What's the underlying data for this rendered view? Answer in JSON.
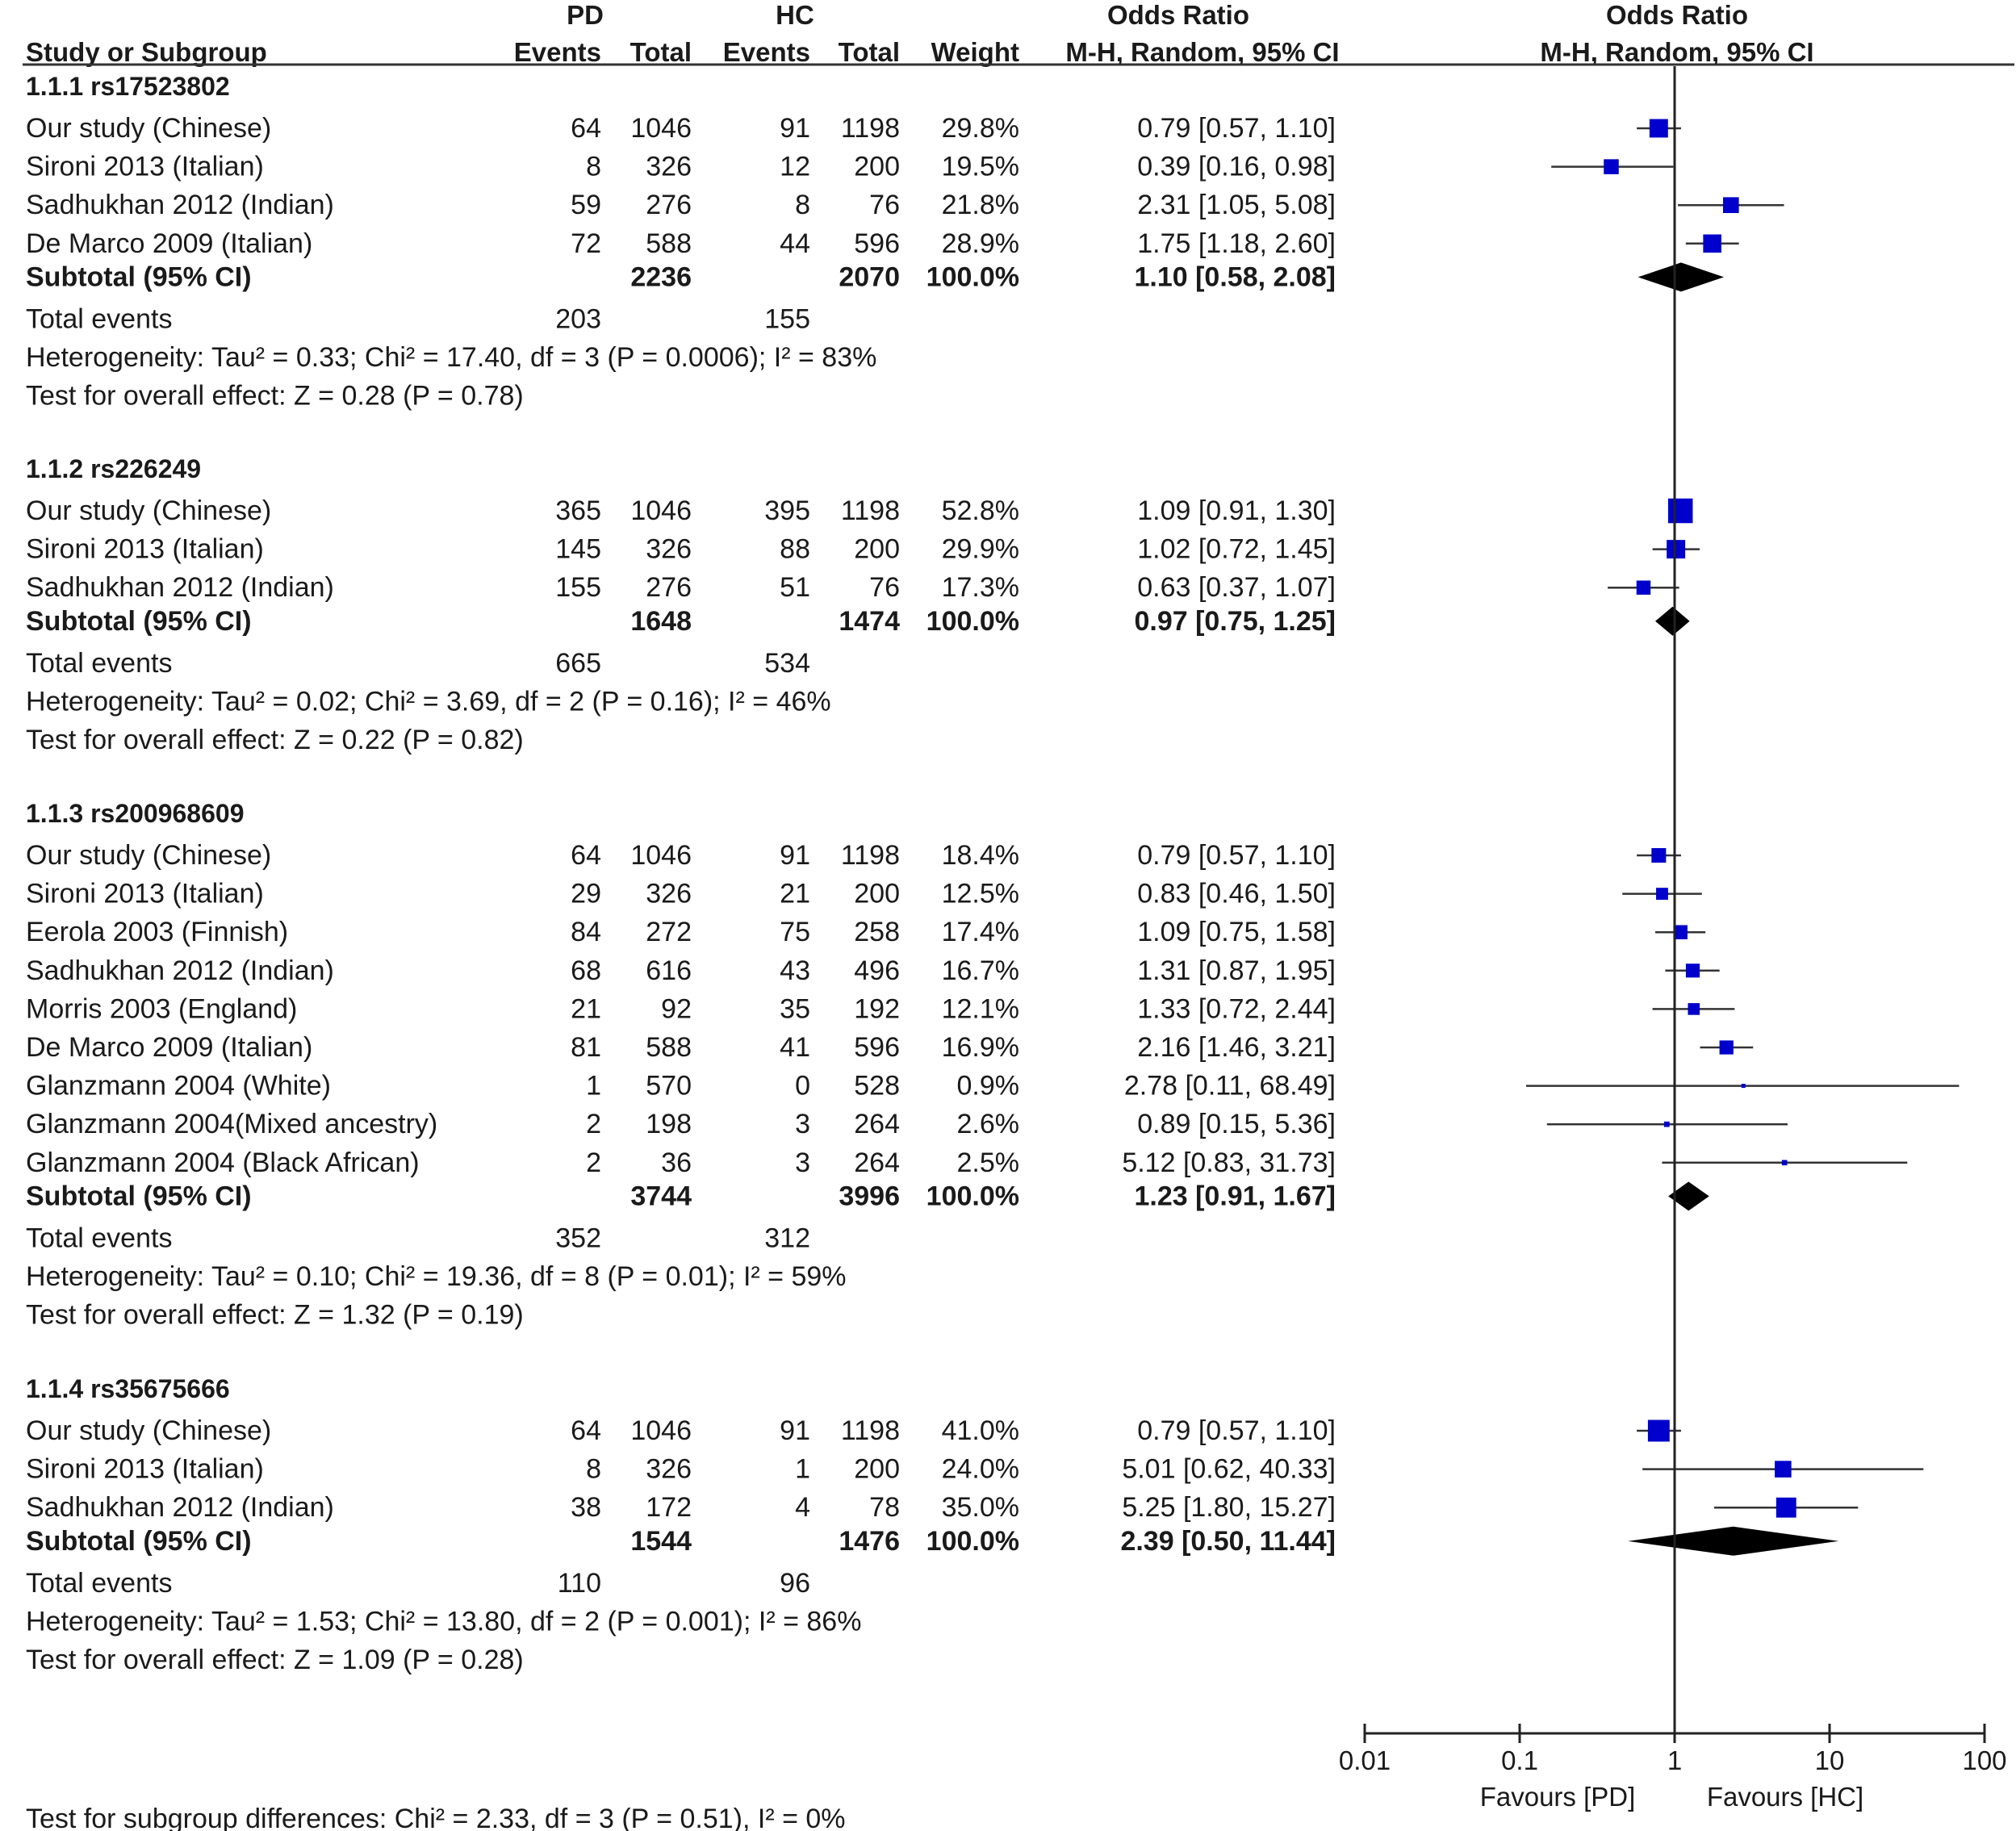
{
  "header": {
    "pd": "PD",
    "hc": "HC",
    "or_left": "Odds Ratio",
    "or_right": "Odds Ratio",
    "study": "Study or Subgroup",
    "events_pd": "Events",
    "total_pd": "Total",
    "events_hc": "Events",
    "total_hc": "Total",
    "weight": "Weight",
    "method_left": "M-H, Random, 95% CI",
    "method_right": "M-H, Random, 95% CI"
  },
  "footer": {
    "favours_left": "Favours [PD]",
    "favours_right": "Favours [HC]",
    "subgroup_test": "Test for subgroup differences: Chi² = 2.33, df = 3 (P = 0.51), I² = 0%"
  },
  "chart_data": {
    "type": "forest",
    "title": "Odds Ratio",
    "xlabel": "M-H, Random, 95% CI",
    "x_scale": "log",
    "xlim": [
      0.01,
      100
    ],
    "ticks": [
      0.01,
      0.1,
      1,
      10,
      100
    ],
    "tick_labels": [
      "0.01",
      "0.1",
      "1",
      "10",
      "100"
    ],
    "colors": {
      "study": "#0000cc",
      "subtotal": "#000000",
      "line": "#333333"
    },
    "groups": [
      {
        "name": "1.1.1 rs17523802",
        "studies": [
          {
            "label": "Our study (Chinese)",
            "pd_events": "64",
            "pd_total": "1046",
            "hc_events": "91",
            "hc_total": "1198",
            "weight": "29.8%",
            "ci_text": "0.79 [0.57, 1.10]",
            "or": 0.79,
            "lo": 0.57,
            "hi": 1.1
          },
          {
            "label": "Sironi 2013 (Italian)",
            "pd_events": "8",
            "pd_total": "326",
            "hc_events": "12",
            "hc_total": "200",
            "weight": "19.5%",
            "ci_text": "0.39 [0.16, 0.98]",
            "or": 0.39,
            "lo": 0.16,
            "hi": 0.98
          },
          {
            "label": "Sadhukhan 2012 (Indian)",
            "pd_events": "59",
            "pd_total": "276",
            "hc_events": "8",
            "hc_total": "76",
            "weight": "21.8%",
            "ci_text": "2.31 [1.05, 5.08]",
            "or": 2.31,
            "lo": 1.05,
            "hi": 5.08
          },
          {
            "label": "De Marco 2009 (Italian)",
            "pd_events": "72",
            "pd_total": "588",
            "hc_events": "44",
            "hc_total": "596",
            "weight": "28.9%",
            "ci_text": "1.75 [1.18, 2.60]",
            "or": 1.75,
            "lo": 1.18,
            "hi": 2.6
          }
        ],
        "subtotal": {
          "label": "Subtotal (95% CI)",
          "pd_total": "2236",
          "hc_total": "2070",
          "weight": "100.0%",
          "ci_text": "1.10 [0.58, 2.08]",
          "or": 1.1,
          "lo": 0.58,
          "hi": 2.08
        },
        "total_events": {
          "label": "Total events",
          "pd": "203",
          "hc": "155"
        },
        "heterogeneity": "Heterogeneity: Tau² = 0.33; Chi² = 17.40, df = 3 (P = 0.0006); I² = 83%",
        "overall": "Test for overall effect: Z = 0.28 (P = 0.78)"
      },
      {
        "name": "1.1.2 rs226249",
        "studies": [
          {
            "label": "Our study (Chinese)",
            "pd_events": "365",
            "pd_total": "1046",
            "hc_events": "395",
            "hc_total": "1198",
            "weight": "52.8%",
            "ci_text": "1.09 [0.91, 1.30]",
            "or": 1.09,
            "lo": 0.91,
            "hi": 1.3
          },
          {
            "label": "Sironi 2013 (Italian)",
            "pd_events": "145",
            "pd_total": "326",
            "hc_events": "88",
            "hc_total": "200",
            "weight": "29.9%",
            "ci_text": "1.02 [0.72, 1.45]",
            "or": 1.02,
            "lo": 0.72,
            "hi": 1.45
          },
          {
            "label": "Sadhukhan 2012 (Indian)",
            "pd_events": "155",
            "pd_total": "276",
            "hc_events": "51",
            "hc_total": "76",
            "weight": "17.3%",
            "ci_text": "0.63 [0.37, 1.07]",
            "or": 0.63,
            "lo": 0.37,
            "hi": 1.07
          }
        ],
        "subtotal": {
          "label": "Subtotal (95% CI)",
          "pd_total": "1648",
          "hc_total": "1474",
          "weight": "100.0%",
          "ci_text": "0.97 [0.75, 1.25]",
          "or": 0.97,
          "lo": 0.75,
          "hi": 1.25
        },
        "total_events": {
          "label": "Total events",
          "pd": "665",
          "hc": "534"
        },
        "heterogeneity": "Heterogeneity: Tau² = 0.02; Chi² = 3.69, df = 2 (P = 0.16); I² = 46%",
        "overall": "Test for overall effect: Z = 0.22 (P = 0.82)"
      },
      {
        "name": "1.1.3 rs200968609",
        "studies": [
          {
            "label": "Our study (Chinese)",
            "pd_events": "64",
            "pd_total": "1046",
            "hc_events": "91",
            "hc_total": "1198",
            "weight": "18.4%",
            "ci_text": "0.79 [0.57, 1.10]",
            "or": 0.79,
            "lo": 0.57,
            "hi": 1.1
          },
          {
            "label": "Sironi 2013 (Italian)",
            "pd_events": "29",
            "pd_total": "326",
            "hc_events": "21",
            "hc_total": "200",
            "weight": "12.5%",
            "ci_text": "0.83 [0.46, 1.50]",
            "or": 0.83,
            "lo": 0.46,
            "hi": 1.5
          },
          {
            "label": "Eerola 2003 (Finnish)",
            "pd_events": "84",
            "pd_total": "272",
            "hc_events": "75",
            "hc_total": "258",
            "weight": "17.4%",
            "ci_text": "1.09 [0.75, 1.58]",
            "or": 1.09,
            "lo": 0.75,
            "hi": 1.58
          },
          {
            "label": "Sadhukhan 2012 (Indian)",
            "pd_events": "68",
            "pd_total": "616",
            "hc_events": "43",
            "hc_total": "496",
            "weight": "16.7%",
            "ci_text": "1.31 [0.87, 1.95]",
            "or": 1.31,
            "lo": 0.87,
            "hi": 1.95
          },
          {
            "label": "Morris 2003 (England)",
            "pd_events": "21",
            "pd_total": "92",
            "hc_events": "35",
            "hc_total": "192",
            "weight": "12.1%",
            "ci_text": "1.33 [0.72, 2.44]",
            "or": 1.33,
            "lo": 0.72,
            "hi": 2.44
          },
          {
            "label": "De Marco 2009 (Italian)",
            "pd_events": "81",
            "pd_total": "588",
            "hc_events": "41",
            "hc_total": "596",
            "weight": "16.9%",
            "ci_text": "2.16 [1.46, 3.21]",
            "or": 2.16,
            "lo": 1.46,
            "hi": 3.21
          },
          {
            "label": "Glanzmann 2004 (White)",
            "pd_events": "1",
            "pd_total": "570",
            "hc_events": "0",
            "hc_total": "528",
            "weight": "0.9%",
            "ci_text": "2.78 [0.11, 68.49]",
            "or": 2.78,
            "lo": 0.11,
            "hi": 68.49
          },
          {
            "label": "Glanzmann 2004(Mixed ancestry)",
            "pd_events": "2",
            "pd_total": "198",
            "hc_events": "3",
            "hc_total": "264",
            "weight": "2.6%",
            "ci_text": "0.89 [0.15, 5.36]",
            "or": 0.89,
            "lo": 0.15,
            "hi": 5.36
          },
          {
            "label": "Glanzmann 2004 (Black African)",
            "pd_events": "2",
            "pd_total": "36",
            "hc_events": "3",
            "hc_total": "264",
            "weight": "2.5%",
            "ci_text": "5.12 [0.83, 31.73]",
            "or": 5.12,
            "lo": 0.83,
            "hi": 31.73
          }
        ],
        "subtotal": {
          "label": "Subtotal (95% CI)",
          "pd_total": "3744",
          "hc_total": "3996",
          "weight": "100.0%",
          "ci_text": "1.23 [0.91, 1.67]",
          "or": 1.23,
          "lo": 0.91,
          "hi": 1.67
        },
        "total_events": {
          "label": "Total events",
          "pd": "352",
          "hc": "312"
        },
        "heterogeneity": "Heterogeneity: Tau² = 0.10; Chi² = 19.36, df = 8 (P = 0.01); I² = 59%",
        "overall": "Test for overall effect: Z = 1.32 (P = 0.19)"
      },
      {
        "name": "1.1.4 rs35675666",
        "studies": [
          {
            "label": "Our study (Chinese)",
            "pd_events": "64",
            "pd_total": "1046",
            "hc_events": "91",
            "hc_total": "1198",
            "weight": "41.0%",
            "ci_text": "0.79 [0.57, 1.10]",
            "or": 0.79,
            "lo": 0.57,
            "hi": 1.1
          },
          {
            "label": "Sironi 2013 (Italian)",
            "pd_events": "8",
            "pd_total": "326",
            "hc_events": "1",
            "hc_total": "200",
            "weight": "24.0%",
            "ci_text": "5.01 [0.62, 40.33]",
            "or": 5.01,
            "lo": 0.62,
            "hi": 40.33
          },
          {
            "label": "Sadhukhan 2012 (Indian)",
            "pd_events": "38",
            "pd_total": "172",
            "hc_events": "4",
            "hc_total": "78",
            "weight": "35.0%",
            "ci_text": "5.25 [1.80, 15.27]",
            "or": 5.25,
            "lo": 1.8,
            "hi": 15.27
          }
        ],
        "subtotal": {
          "label": "Subtotal (95% CI)",
          "pd_total": "1544",
          "hc_total": "1476",
          "weight": "100.0%",
          "ci_text": "2.39 [0.50, 11.44]",
          "or": 2.39,
          "lo": 0.5,
          "hi": 11.44
        },
        "total_events": {
          "label": "Total events",
          "pd": "110",
          "hc": "96"
        },
        "heterogeneity": "Heterogeneity: Tau² = 1.53; Chi² = 13.80, df = 2 (P = 0.001); I² = 86%",
        "overall": "Test for overall effect: Z = 1.09 (P = 0.28)"
      }
    ]
  }
}
